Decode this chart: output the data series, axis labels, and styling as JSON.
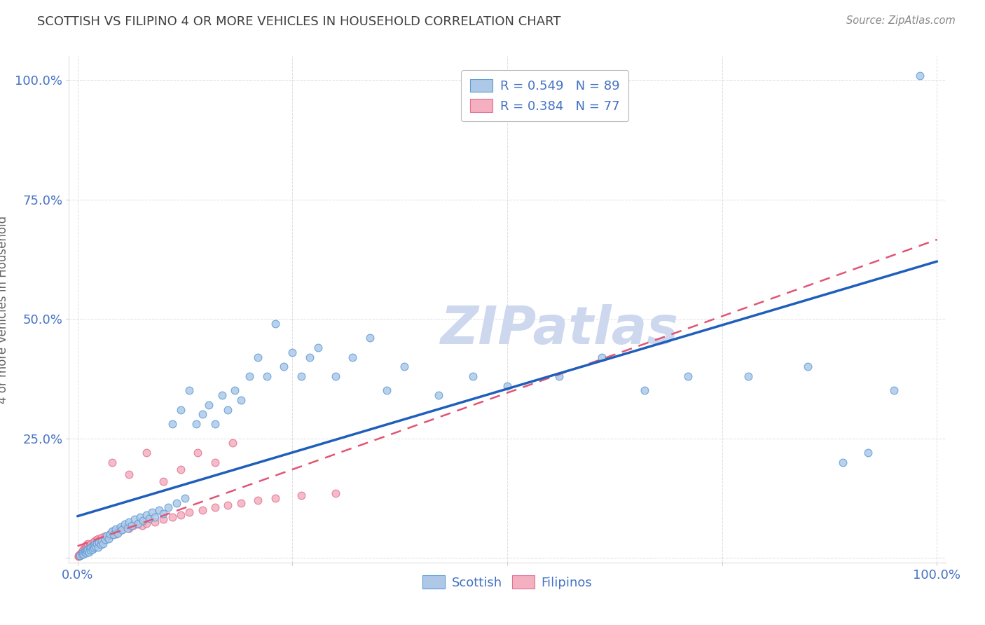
{
  "title": "SCOTTISH VS FILIPINO 4 OR MORE VEHICLES IN HOUSEHOLD CORRELATION CHART",
  "source": "Source: ZipAtlas.com",
  "ylabel": "4 or more Vehicles in Household",
  "xlim": [
    -0.01,
    1.01
  ],
  "ylim": [
    -0.01,
    1.05
  ],
  "xticks": [
    0.0,
    0.25,
    0.5,
    0.75,
    1.0
  ],
  "yticks": [
    0.0,
    0.25,
    0.5,
    0.75,
    1.0
  ],
  "xticklabels": [
    "0.0%",
    "",
    "",
    "",
    "100.0%"
  ],
  "yticklabels": [
    "",
    "25.0%",
    "50.0%",
    "75.0%",
    "100.0%"
  ],
  "scottish_R": 0.549,
  "scottish_N": 89,
  "filipino_R": 0.384,
  "filipino_N": 77,
  "scottish_color": "#aec9e8",
  "scottish_edge_color": "#5b9bd5",
  "filipino_color": "#f4b0c0",
  "filipino_edge_color": "#e07090",
  "scottish_line_color": "#1f5fbb",
  "filipino_line_color": "#e05575",
  "watermark_color": "#cdd8ee",
  "background_color": "#ffffff",
  "grid_color": "#d0d0d0",
  "tick_color": "#4472c4",
  "title_color": "#404040",
  "marker_size": 60,
  "scottish_x": [
    0.003,
    0.005,
    0.006,
    0.007,
    0.008,
    0.009,
    0.01,
    0.011,
    0.012,
    0.013,
    0.014,
    0.015,
    0.016,
    0.017,
    0.018,
    0.019,
    0.02,
    0.021,
    0.022,
    0.024,
    0.025,
    0.027,
    0.028,
    0.03,
    0.032,
    0.034,
    0.036,
    0.038,
    0.04,
    0.042,
    0.044,
    0.047,
    0.05,
    0.052,
    0.055,
    0.058,
    0.06,
    0.063,
    0.066,
    0.07,
    0.073,
    0.076,
    0.08,
    0.083,
    0.087,
    0.09,
    0.095,
    0.1,
    0.105,
    0.11,
    0.115,
    0.12,
    0.125,
    0.13,
    0.138,
    0.145,
    0.153,
    0.16,
    0.168,
    0.175,
    0.183,
    0.19,
    0.2,
    0.21,
    0.22,
    0.23,
    0.24,
    0.25,
    0.26,
    0.27,
    0.28,
    0.3,
    0.32,
    0.34,
    0.36,
    0.38,
    0.42,
    0.46,
    0.5,
    0.56,
    0.61,
    0.66,
    0.71,
    0.78,
    0.85,
    0.89,
    0.92,
    0.95,
    0.98
  ],
  "scottish_y": [
    0.005,
    0.007,
    0.01,
    0.008,
    0.012,
    0.015,
    0.01,
    0.014,
    0.018,
    0.012,
    0.02,
    0.016,
    0.022,
    0.018,
    0.025,
    0.02,
    0.028,
    0.024,
    0.03,
    0.022,
    0.032,
    0.028,
    0.035,
    0.03,
    0.038,
    0.045,
    0.04,
    0.05,
    0.055,
    0.048,
    0.06,
    0.052,
    0.065,
    0.058,
    0.07,
    0.062,
    0.075,
    0.068,
    0.08,
    0.072,
    0.085,
    0.078,
    0.09,
    0.082,
    0.095,
    0.085,
    0.1,
    0.092,
    0.105,
    0.28,
    0.115,
    0.31,
    0.125,
    0.35,
    0.28,
    0.3,
    0.32,
    0.28,
    0.34,
    0.31,
    0.35,
    0.33,
    0.38,
    0.42,
    0.38,
    0.49,
    0.4,
    0.43,
    0.38,
    0.42,
    0.44,
    0.38,
    0.42,
    0.46,
    0.35,
    0.4,
    0.34,
    0.38,
    0.36,
    0.38,
    0.42,
    0.35,
    0.38,
    0.38,
    0.4,
    0.2,
    0.22,
    0.35,
    1.01
  ],
  "filipino_x": [
    0.001,
    0.001,
    0.002,
    0.002,
    0.003,
    0.003,
    0.004,
    0.004,
    0.005,
    0.005,
    0.006,
    0.006,
    0.007,
    0.007,
    0.008,
    0.008,
    0.009,
    0.009,
    0.01,
    0.01,
    0.011,
    0.011,
    0.012,
    0.012,
    0.013,
    0.014,
    0.015,
    0.016,
    0.017,
    0.018,
    0.019,
    0.02,
    0.021,
    0.022,
    0.023,
    0.024,
    0.025,
    0.026,
    0.027,
    0.028,
    0.03,
    0.032,
    0.034,
    0.036,
    0.038,
    0.04,
    0.042,
    0.045,
    0.048,
    0.052,
    0.056,
    0.06,
    0.065,
    0.07,
    0.075,
    0.08,
    0.09,
    0.1,
    0.11,
    0.12,
    0.13,
    0.145,
    0.16,
    0.175,
    0.19,
    0.21,
    0.23,
    0.26,
    0.3,
    0.04,
    0.06,
    0.08,
    0.1,
    0.12,
    0.14,
    0.16,
    0.18
  ],
  "filipino_y": [
    0.003,
    0.005,
    0.004,
    0.006,
    0.005,
    0.008,
    0.006,
    0.01,
    0.007,
    0.012,
    0.008,
    0.015,
    0.01,
    0.018,
    0.012,
    0.02,
    0.014,
    0.022,
    0.015,
    0.025,
    0.016,
    0.028,
    0.018,
    0.03,
    0.02,
    0.025,
    0.028,
    0.03,
    0.025,
    0.032,
    0.028,
    0.035,
    0.03,
    0.038,
    0.032,
    0.04,
    0.035,
    0.038,
    0.04,
    0.042,
    0.038,
    0.045,
    0.04,
    0.045,
    0.05,
    0.048,
    0.055,
    0.05,
    0.06,
    0.058,
    0.065,
    0.062,
    0.068,
    0.07,
    0.068,
    0.072,
    0.075,
    0.08,
    0.085,
    0.09,
    0.095,
    0.1,
    0.105,
    0.11,
    0.115,
    0.12,
    0.125,
    0.13,
    0.135,
    0.2,
    0.175,
    0.22,
    0.16,
    0.185,
    0.22,
    0.2,
    0.24
  ]
}
